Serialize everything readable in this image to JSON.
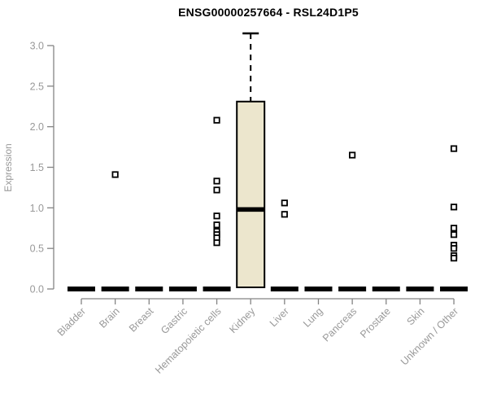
{
  "title": "ENSG00000257664 - RSL24D1P5",
  "chart_data": {
    "type": "boxplot",
    "title": "ENSG00000257664 - RSL24D1P5",
    "xlabel": "",
    "ylabel": "Expression",
    "ylim": [
      0.0,
      3.0
    ],
    "yticks": [
      0.0,
      0.5,
      1.0,
      1.5,
      2.0,
      2.5,
      3.0
    ],
    "grid": "off",
    "categories": [
      "Bladder",
      "Brain",
      "Breast",
      "Gastric",
      "Hematopoietic cells",
      "Kidney",
      "Liver",
      "Lung",
      "Pancreas",
      "Prostate",
      "Skin",
      "Unknown / Other"
    ],
    "boxes": [
      {
        "category": "Bladder",
        "q1": 0,
        "median": 0,
        "q3": 0,
        "whisker_low": 0,
        "whisker_high": 0,
        "outliers": []
      },
      {
        "category": "Brain",
        "q1": 0,
        "median": 0,
        "q3": 0,
        "whisker_low": 0,
        "whisker_high": 0,
        "outliers": [
          1.41
        ]
      },
      {
        "category": "Breast",
        "q1": 0,
        "median": 0,
        "q3": 0,
        "whisker_low": 0,
        "whisker_high": 0,
        "outliers": []
      },
      {
        "category": "Gastric",
        "q1": 0,
        "median": 0,
        "q3": 0,
        "whisker_low": 0,
        "whisker_high": 0,
        "outliers": []
      },
      {
        "category": "Hematopoietic cells",
        "q1": 0,
        "median": 0,
        "q3": 0,
        "whisker_low": 0,
        "whisker_high": 0,
        "outliers": [
          2.08,
          1.33,
          1.22,
          0.9,
          0.79,
          0.71,
          0.67,
          0.63,
          0.57
        ]
      },
      {
        "category": "Kidney",
        "q1": 0.02,
        "median": 0.98,
        "q3": 2.31,
        "whisker_low": 0.02,
        "whisker_high": 3.15,
        "outliers": []
      },
      {
        "category": "Liver",
        "q1": 0,
        "median": 0,
        "q3": 0,
        "whisker_low": 0,
        "whisker_high": 0,
        "outliers": [
          1.06,
          0.92
        ]
      },
      {
        "category": "Lung",
        "q1": 0,
        "median": 0,
        "q3": 0,
        "whisker_low": 0,
        "whisker_high": 0,
        "outliers": []
      },
      {
        "category": "Pancreas",
        "q1": 0,
        "median": 0,
        "q3": 0,
        "whisker_low": 0,
        "whisker_high": 0,
        "outliers": [
          1.65
        ]
      },
      {
        "category": "Prostate",
        "q1": 0,
        "median": 0,
        "q3": 0,
        "whisker_low": 0,
        "whisker_high": 0,
        "outliers": []
      },
      {
        "category": "Skin",
        "q1": 0,
        "median": 0,
        "q3": 0,
        "whisker_low": 0,
        "whisker_high": 0,
        "outliers": []
      },
      {
        "category": "Unknown / Other",
        "q1": 0,
        "median": 0,
        "q3": 0,
        "whisker_low": 0,
        "whisker_high": 0,
        "outliers": [
          1.73,
          1.01,
          0.75,
          0.67,
          0.54,
          0.5,
          0.41,
          0.38
        ]
      }
    ],
    "colors": {
      "box_fill": "#ece6cd",
      "box_stroke": "#000000",
      "median": "#000000",
      "flat_bar": "#000000",
      "outlier_stroke": "#000000",
      "outlier_fill": "#ffffff",
      "axis_line": "#848484",
      "tick_text": "#999999",
      "title_text": "#000000"
    },
    "legend": null
  }
}
